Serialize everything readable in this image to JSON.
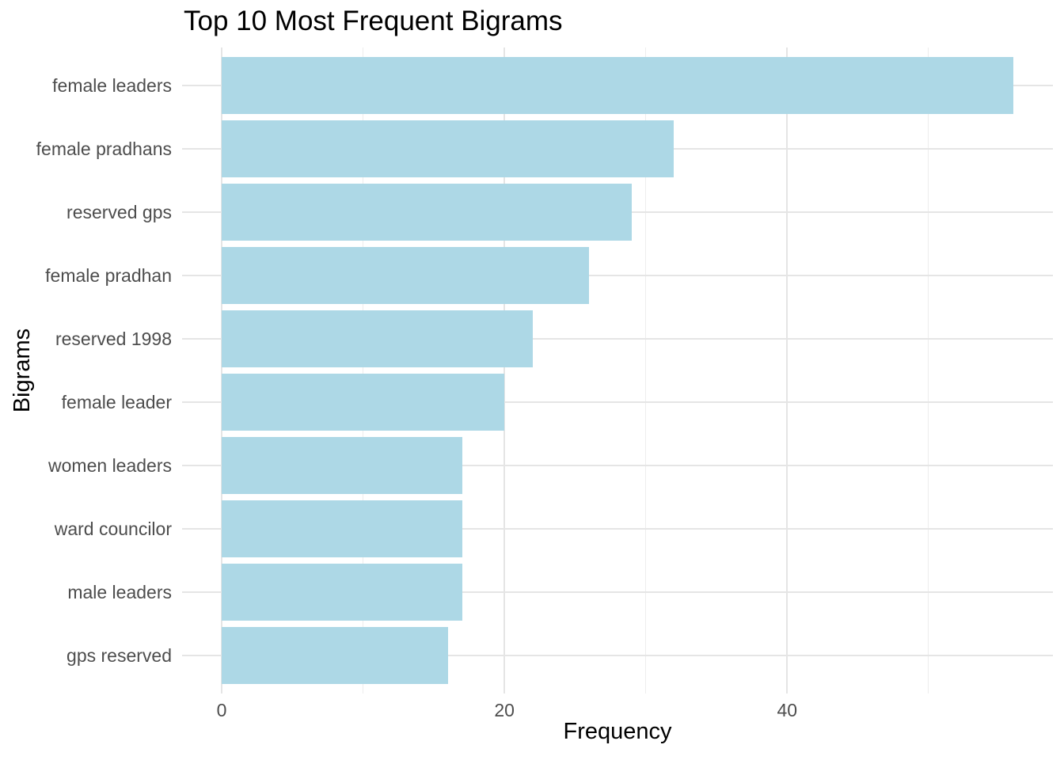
{
  "chart_data": {
    "type": "bar",
    "orientation": "horizontal",
    "title": "Top 10 Most Frequent Bigrams",
    "xlabel": "Frequency",
    "ylabel": "Bigrams",
    "categories": [
      "female leaders",
      "female pradhans",
      "reserved gps",
      "female pradhan",
      "reserved 1998",
      "female leader",
      "women leaders",
      "ward councilor",
      "male leaders",
      "gps reserved"
    ],
    "values": [
      56,
      32,
      29,
      26,
      22,
      20,
      17,
      17,
      17,
      16
    ],
    "x_ticks": [
      {
        "value": 0,
        "label": "0"
      },
      {
        "value": 20,
        "label": "20"
      },
      {
        "value": 40,
        "label": "40"
      }
    ],
    "x_minor_ticks": [
      10,
      30,
      50
    ],
    "xlim": [
      -2.8,
      58.8
    ],
    "bar_relative_height": 0.9,
    "legend": "none",
    "grid": "major-and-minor-vertical, major-horizontal",
    "colors": {
      "bar": "#ADD8E6",
      "grid_major": "#E5E5E5",
      "grid_minor": "#EDEDED",
      "tick_label": "#4D4D4D",
      "title": "#000000",
      "axis_title": "#000000",
      "background": "#FFFFFF"
    }
  }
}
